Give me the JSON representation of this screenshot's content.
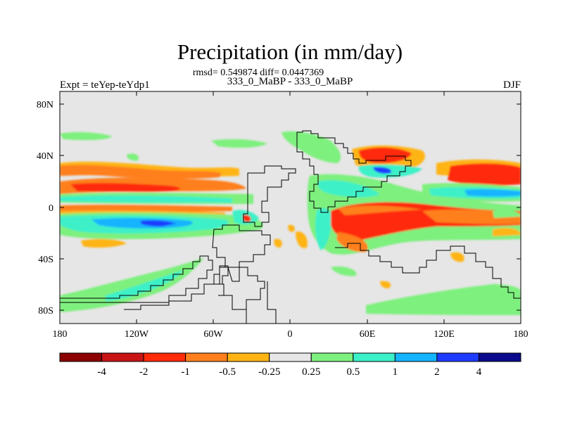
{
  "chart_data": {
    "type": "heatmap",
    "title": "Precipitation (in mm/day)",
    "stats": "rmsd= 0.549874 diff= 0.0447369",
    "subtitle": "333_0_MaBP - 333_0_MaBP",
    "left_label": "Expt = teYep-teYdp1",
    "right_label": "DJF",
    "x_ticks": [
      "180",
      "120W",
      "60W",
      "0",
      "60E",
      "120E",
      "180"
    ],
    "y_ticks": [
      "80N",
      "40N",
      "0",
      "40S",
      "80S"
    ],
    "xlim": [
      -180,
      180
    ],
    "ylim": [
      -90,
      90
    ],
    "colorbar": {
      "labels": [
        "-4",
        "-2",
        "-1",
        "-0.5",
        "-0.25",
        "0.25",
        "0.5",
        "1",
        "2",
        "4"
      ],
      "colors": [
        "#8b0000",
        "#c81414",
        "#ff2a0a",
        "#ff7f1e",
        "#ffb414",
        "#e6e6e6",
        "#7ef07e",
        "#3cf0c8",
        "#14b4ff",
        "#1e3cff",
        "#0a0a8c"
      ]
    },
    "background_color": "#e6e6e6",
    "anomaly_regions": [
      {
        "name": "north-pacific-dry-band",
        "lon": [
          -180,
          -60
        ],
        "lat": [
          12,
          28
        ],
        "class": "-1"
      },
      {
        "name": "north-pacific-wet-band",
        "lon": [
          -180,
          -60
        ],
        "lat": [
          4,
          10
        ],
        "class": "1"
      },
      {
        "name": "south-pacific-wet-band",
        "lon": [
          -180,
          -40
        ],
        "lat": [
          -22,
          -8
        ],
        "class": "2"
      },
      {
        "name": "west-asia-dry",
        "lon": [
          60,
          100
        ],
        "lat": [
          30,
          48
        ],
        "class": "-2"
      },
      {
        "name": "indian-ocean-dry",
        "lon": [
          40,
          130
        ],
        "lat": [
          -22,
          5
        ],
        "class": "-2"
      },
      {
        "name": "west-pacific-dry",
        "lon": [
          120,
          180
        ],
        "lat": [
          15,
          33
        ],
        "class": "-1"
      },
      {
        "name": "west-pacific-wet",
        "lon": [
          115,
          180
        ],
        "lat": [
          0,
          10
        ],
        "class": "1"
      },
      {
        "name": "southern-ocean-wet-east",
        "lon": [
          125,
          180
        ],
        "lat": [
          -88,
          -62
        ],
        "class": "0.25"
      },
      {
        "name": "southern-ocean-wet-west",
        "lon": [
          -180,
          -90
        ],
        "lat": [
          -88,
          -62
        ],
        "class": "0.25"
      }
    ]
  }
}
